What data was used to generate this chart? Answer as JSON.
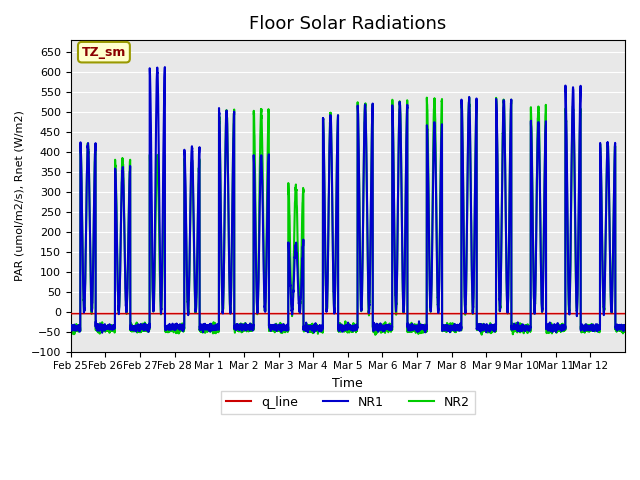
{
  "title": "Floor Solar Radiations",
  "ylabel": "PAR (umol/m2/s), Rnet (W/m2)",
  "xlabel": "Time",
  "ylim": [
    -100,
    680
  ],
  "bg_color": "#e8e8e8",
  "line_colors": {
    "q_line": "#cc0000",
    "NR1": "#0000cc",
    "NR2": "#00cc00"
  },
  "line_widths": {
    "q_line": 1.2,
    "NR1": 1.5,
    "NR2": 1.5
  },
  "annotation_label": "TZ_sm",
  "annotation_bg": "#ffffcc",
  "annotation_border": "#999900",
  "num_days": 16,
  "xlabel_dates": [
    "Feb 25",
    "Feb 26",
    "Feb 27",
    "Feb 28",
    "Mar 1",
    "Mar 2",
    "Mar 3",
    "Mar 4",
    "Mar 5",
    "Mar 6",
    "Mar 7",
    "Mar 8",
    "Mar 9",
    "Mar 10",
    "Mar 11",
    "Mar 12"
  ],
  "day_peak_NR1": [
    420,
    360,
    610,
    410,
    500,
    390,
    170,
    490,
    520,
    520,
    470,
    530,
    530,
    475,
    560,
    420
  ],
  "day_peak_NR2": [
    420,
    380,
    390,
    380,
    500,
    505,
    315,
    490,
    520,
    525,
    530,
    530,
    530,
    510,
    510,
    415
  ],
  "night_NR1": -40,
  "night_NR2": -42,
  "q_line_value": -5
}
